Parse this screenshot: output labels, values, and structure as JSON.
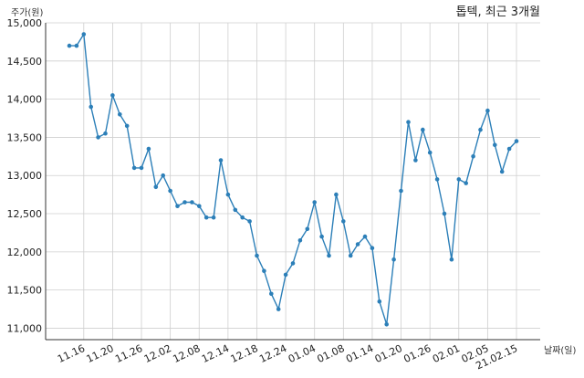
{
  "chart_data": {
    "type": "line",
    "title": "톱텍, 최근 3개월",
    "ylabel": "주가(원)",
    "xlabel": "날짜(일)",
    "ylim": [
      10850,
      15000
    ],
    "yticks": [
      11000,
      11500,
      12000,
      12500,
      13000,
      13500,
      14000,
      14500,
      15000
    ],
    "ytick_labels": [
      "11,000",
      "11,500",
      "12,000",
      "12,500",
      "13,000",
      "13,500",
      "14,000",
      "14,500",
      "15,000"
    ],
    "xticks": [
      {
        "index": 2,
        "label": "11.16"
      },
      {
        "index": 6,
        "label": "11.20"
      },
      {
        "index": 10,
        "label": "11.26"
      },
      {
        "index": 14,
        "label": "12.02"
      },
      {
        "index": 18,
        "label": "12.08"
      },
      {
        "index": 22,
        "label": "12.14"
      },
      {
        "index": 26,
        "label": "12.18"
      },
      {
        "index": 30,
        "label": "12.24"
      },
      {
        "index": 34,
        "label": "01.04"
      },
      {
        "index": 38,
        "label": "01.08"
      },
      {
        "index": 42,
        "label": "01.14"
      },
      {
        "index": 46,
        "label": "01.20"
      },
      {
        "index": 50,
        "label": "01.26"
      },
      {
        "index": 54,
        "label": "02.01"
      },
      {
        "index": 58,
        "label": "02.05"
      },
      {
        "index": 62,
        "label": "21.02.15"
      }
    ],
    "grid": true,
    "color": "#2c7fb8",
    "series": [
      {
        "values": [
          14700,
          14700,
          14850,
          13900,
          13500,
          13550,
          14050,
          13800,
          13650,
          13100,
          13100,
          13350,
          12850,
          13000,
          12800,
          12600,
          12650,
          12650,
          12600,
          12450,
          12450,
          13200,
          12750,
          12550,
          12450,
          12400,
          11950,
          11750,
          11450,
          11250,
          11700,
          11850,
          12150,
          12300,
          12650,
          12200,
          11950,
          12750,
          12400,
          11950,
          12100,
          12200,
          12050,
          11350,
          11050,
          11900,
          12800,
          13700,
          13200,
          13600,
          13300,
          12950,
          12500,
          11900,
          12950,
          12900,
          13250,
          13600,
          13850,
          13400,
          13050,
          13350,
          13450
        ]
      }
    ]
  }
}
